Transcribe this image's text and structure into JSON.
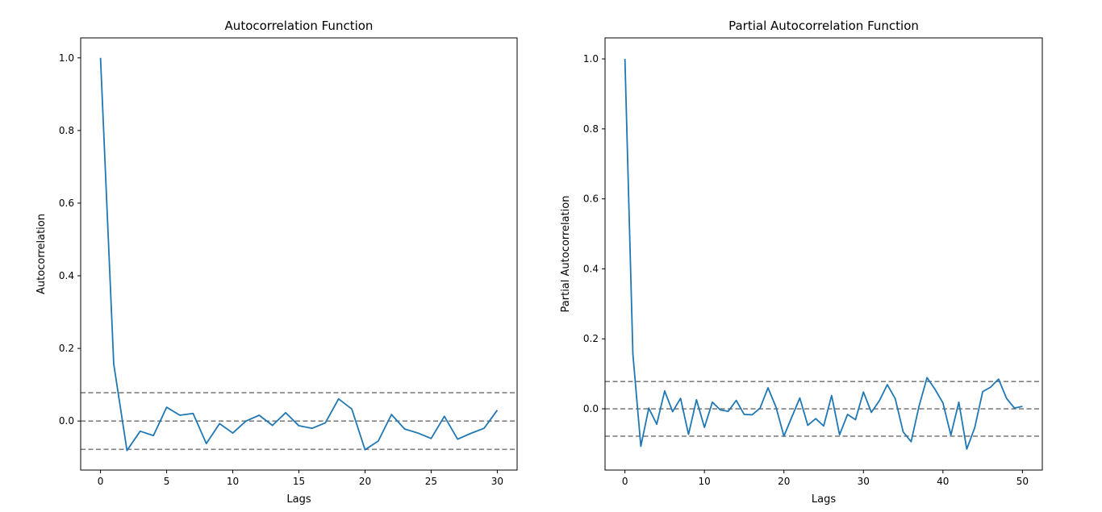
{
  "chart_data": [
    {
      "type": "line",
      "title": "Autocorrelation Function",
      "xlabel": "Lags",
      "ylabel": "Autocorrelation",
      "xlim": [
        -1.5,
        31.5
      ],
      "ylim": [
        -0.135,
        1.055
      ],
      "xticks": [
        0,
        5,
        10,
        15,
        20,
        25,
        30
      ],
      "yticks": [
        0.0,
        0.2,
        0.4,
        0.6,
        0.8,
        1.0
      ],
      "xtick_labels": [
        "0",
        "5",
        "10",
        "15",
        "20",
        "25",
        "30"
      ],
      "ytick_labels": [
        "0.0",
        "0.2",
        "0.4",
        "0.6",
        "0.8",
        "1.0"
      ],
      "reference_lines": [
        0.078,
        0.0,
        -0.078
      ],
      "colors": {
        "series": "#1f77b4",
        "reference": "#808080"
      },
      "x": [
        0,
        1,
        2,
        3,
        4,
        5,
        6,
        7,
        8,
        9,
        10,
        11,
        12,
        13,
        14,
        15,
        16,
        17,
        18,
        19,
        20,
        21,
        22,
        23,
        24,
        25,
        26,
        27,
        28,
        29,
        30
      ],
      "y": [
        1.0,
        0.157,
        -0.081,
        -0.028,
        -0.04,
        0.038,
        0.016,
        0.021,
        -0.062,
        -0.007,
        -0.033,
        0.0,
        0.016,
        -0.012,
        0.023,
        -0.013,
        -0.02,
        -0.005,
        0.061,
        0.033,
        -0.079,
        -0.055,
        0.018,
        -0.022,
        -0.033,
        -0.048,
        0.013,
        -0.05,
        -0.034,
        -0.02,
        0.03
      ]
    },
    {
      "type": "line",
      "title": "Partial Autocorrelation Function",
      "xlabel": "Lags",
      "ylabel": "Partial Autocorrelation",
      "xlim": [
        -2.5,
        52.5
      ],
      "ylim": [
        -0.175,
        1.06
      ],
      "xticks": [
        0,
        10,
        20,
        30,
        40,
        50
      ],
      "yticks": [
        0.0,
        0.2,
        0.4,
        0.6,
        0.8,
        1.0
      ],
      "xtick_labels": [
        "0",
        "10",
        "20",
        "30",
        "40",
        "50"
      ],
      "ytick_labels": [
        "0.0",
        "0.2",
        "0.4",
        "0.6",
        "0.8",
        "1.0"
      ],
      "reference_lines": [
        0.078,
        0.0,
        -0.078
      ],
      "colors": {
        "series": "#1f77b4",
        "reference": "#808080"
      },
      "x": [
        0,
        1,
        2,
        3,
        4,
        5,
        6,
        7,
        8,
        9,
        10,
        11,
        12,
        13,
        14,
        15,
        16,
        17,
        18,
        19,
        20,
        21,
        22,
        23,
        24,
        25,
        26,
        27,
        28,
        29,
        30,
        31,
        32,
        33,
        34,
        35,
        36,
        37,
        38,
        39,
        40,
        41,
        42,
        43,
        44,
        45,
        46,
        47,
        48,
        49,
        50
      ],
      "y": [
        1.0,
        0.157,
        -0.107,
        0.002,
        -0.044,
        0.051,
        -0.008,
        0.03,
        -0.073,
        0.026,
        -0.053,
        0.019,
        -0.003,
        -0.007,
        0.024,
        -0.016,
        -0.017,
        0.002,
        0.06,
        0.005,
        -0.078,
        -0.023,
        0.031,
        -0.047,
        -0.028,
        -0.049,
        0.038,
        -0.074,
        -0.016,
        -0.031,
        0.048,
        -0.01,
        0.023,
        0.069,
        0.029,
        -0.066,
        -0.094,
        0.008,
        0.089,
        0.056,
        0.017,
        -0.075,
        0.019,
        -0.115,
        -0.054,
        0.049,
        0.062,
        0.085,
        0.03,
        0.002,
        0.007
      ]
    }
  ]
}
